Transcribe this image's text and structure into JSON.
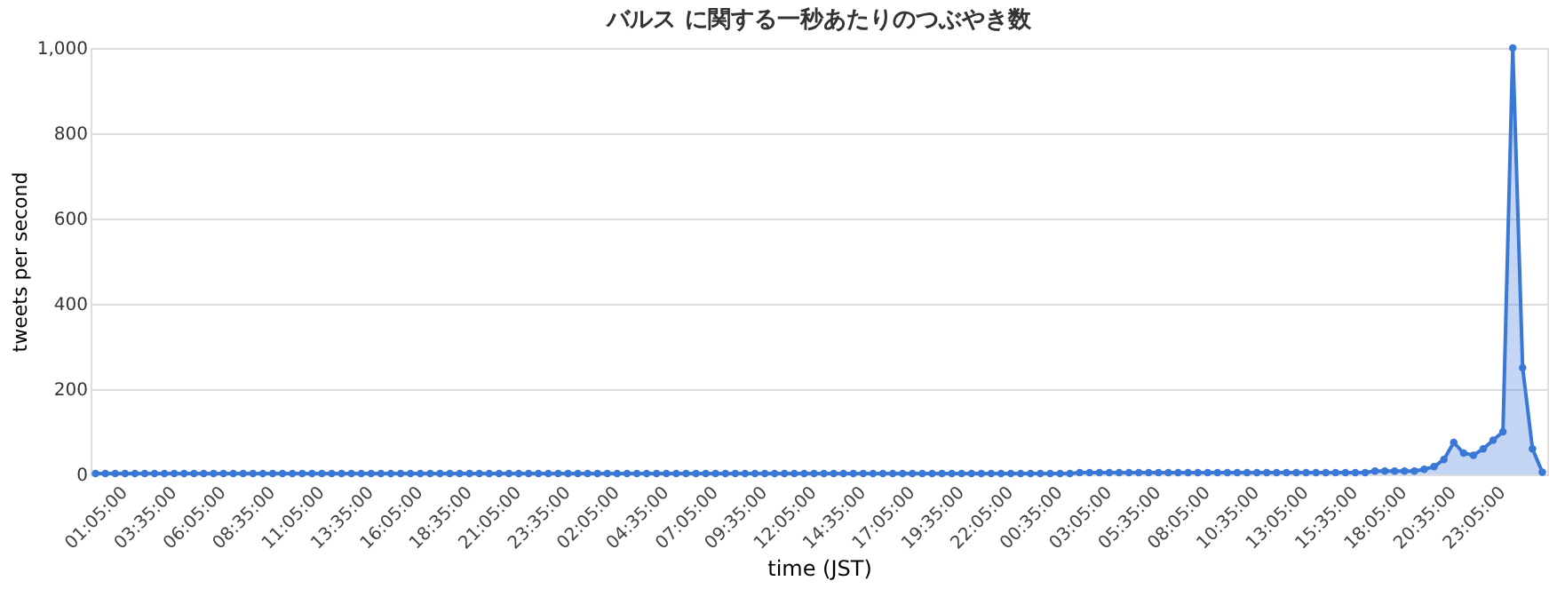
{
  "chart_data": {
    "type": "area",
    "title": "バルス に関する一秒あたりのつぶやき数",
    "xlabel": "time (JST)",
    "ylabel": "tweets per second",
    "categories": [
      "01:05:00",
      null,
      null,
      null,
      null,
      "03:35:00",
      null,
      null,
      null,
      null,
      "06:05:00",
      null,
      null,
      null,
      null,
      "08:35:00",
      null,
      null,
      null,
      null,
      "11:05:00",
      null,
      null,
      null,
      null,
      "13:35:00",
      null,
      null,
      null,
      null,
      "16:05:00",
      null,
      null,
      null,
      null,
      "18:35:00",
      null,
      null,
      null,
      null,
      "21:05:00",
      null,
      null,
      null,
      null,
      "23:35:00",
      null,
      null,
      null,
      null,
      "02:05:00",
      null,
      null,
      null,
      null,
      "04:35:00",
      null,
      null,
      null,
      null,
      "07:05:00",
      null,
      null,
      null,
      null,
      "09:35:00",
      null,
      null,
      null,
      null,
      "12:05:00",
      null,
      null,
      null,
      null,
      "14:35:00",
      null,
      null,
      null,
      null,
      "17:05:00",
      null,
      null,
      null,
      null,
      "19:35:00",
      null,
      null,
      null,
      null,
      "22:05:00",
      null,
      null,
      null,
      null,
      "00:35:00",
      null,
      null,
      null,
      null,
      "03:05:00",
      null,
      null,
      null,
      null,
      "05:35:00",
      null,
      null,
      null,
      null,
      "08:05:00",
      null,
      null,
      null,
      null,
      "10:35:00",
      null,
      null,
      null,
      null,
      "13:05:00",
      null,
      null,
      null,
      null,
      "15:35:00",
      null,
      null,
      null,
      null,
      "18:05:00",
      null,
      null,
      null,
      null,
      "20:35:00",
      null,
      null,
      null,
      null,
      "23:05:00",
      null,
      null,
      null,
      null,
      null,
      null,
      null
    ],
    "series": [
      {
        "color": "#3a78d8",
        "values": [
          2,
          2,
          2,
          2,
          2,
          2,
          2,
          2,
          2,
          2,
          2,
          2,
          2,
          2,
          2,
          2,
          2,
          2,
          2,
          2,
          2,
          2,
          2,
          2,
          2,
          2,
          2,
          2,
          2,
          2,
          2,
          2,
          2,
          2,
          2,
          2,
          2,
          2,
          2,
          2,
          2,
          2,
          2,
          2,
          2,
          2,
          2,
          2,
          2,
          2,
          2,
          2,
          2,
          2,
          2,
          2,
          2,
          2,
          2,
          2,
          2,
          2,
          2,
          2,
          2,
          2,
          2,
          2,
          2,
          2,
          2,
          2,
          2,
          2,
          2,
          2,
          2,
          2,
          2,
          2,
          2,
          2,
          2,
          2,
          2,
          2,
          2,
          2,
          2,
          2,
          2,
          2,
          2,
          2,
          2,
          2,
          2,
          2,
          2,
          2,
          4,
          4,
          4,
          4,
          4,
          4,
          4,
          4,
          4,
          4,
          4,
          4,
          4,
          4,
          4,
          4,
          4,
          4,
          4,
          4,
          4,
          4,
          4,
          4,
          4,
          4,
          4,
          4,
          4,
          4,
          8,
          8,
          8,
          8,
          8,
          12,
          18,
          35,
          75,
          50,
          45,
          60,
          80,
          100,
          1000,
          250,
          60,
          5
        ]
      }
    ],
    "ylim": [
      0,
      1000
    ],
    "yticks": [
      0,
      {
        "value": 200,
        "label": "200"
      },
      {
        "value": 400,
        "label": "400"
      },
      {
        "value": 600,
        "label": "600"
      },
      {
        "value": 800,
        "label": "800"
      },
      {
        "value": 1000,
        "label": "1,000"
      }
    ],
    "grid": "y",
    "marker": "circle"
  }
}
